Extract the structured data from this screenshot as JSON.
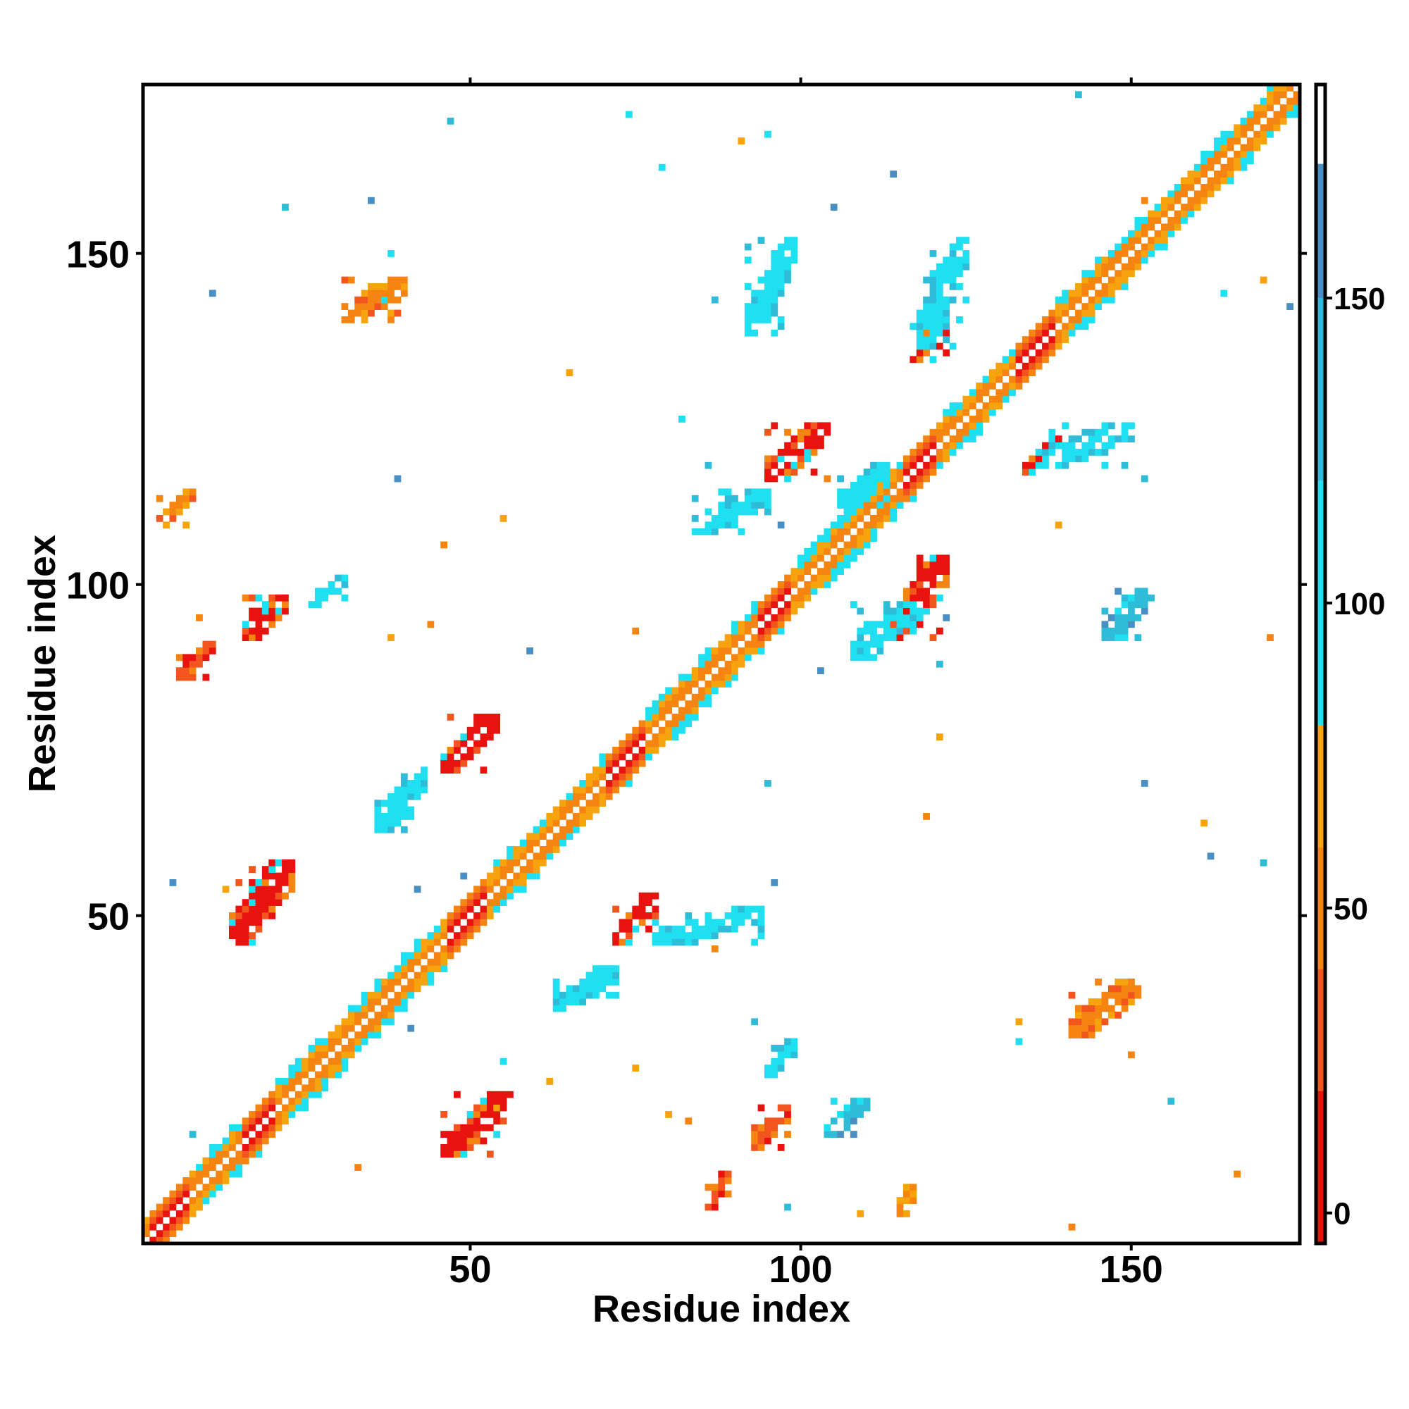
{
  "chart_data": {
    "type": "heatmap",
    "title": "",
    "xlabel": "Residue index",
    "ylabel": "Residue index",
    "xlim": [
      1,
      175
    ],
    "ylim": [
      1,
      175
    ],
    "x_ticks": [
      50,
      100,
      150
    ],
    "y_ticks": [
      50,
      100,
      150
    ],
    "x_tick_labels": [
      "50",
      "100",
      "150"
    ],
    "y_tick_labels": [
      "50",
      "100",
      "150"
    ],
    "grid": false,
    "colorbar": {
      "placement": "right",
      "range": [
        -5,
        185
      ],
      "ticks": [
        0,
        50,
        100,
        150
      ],
      "tick_labels": [
        "0",
        "50",
        "100",
        "150"
      ],
      "bins": [
        {
          "from": -5,
          "to": 20,
          "color": "#e8130f"
        },
        {
          "from": 20,
          "to": 40,
          "color": "#f2561e"
        },
        {
          "from": 40,
          "to": 60,
          "color": "#f58510"
        },
        {
          "from": 60,
          "to": 80,
          "color": "#f7a30d"
        },
        {
          "from": 80,
          "to": 120,
          "color": "#1fe0f0"
        },
        {
          "from": 120,
          "to": 150,
          "color": "#2fbcd8"
        },
        {
          "from": 150,
          "to": 172,
          "color": "#4a8fc4"
        },
        {
          "from": 172,
          "to": 185,
          "color": "#ffffff"
        }
      ]
    },
    "colors": {
      "red": "#e8130f",
      "red_orange": "#f2561e",
      "orange": "#f58510",
      "light_orange": "#f7a30d",
      "cyan": "#1fe0f0",
      "sky_blue": "#2fbcd8",
      "steel_blue": "#4a8fc4"
    },
    "contact_map": {
      "diagonal_band": {
        "from": 1,
        "to": 175,
        "width": 3,
        "colors": [
          "red",
          "orange",
          "light_orange",
          "cyan"
        ]
      },
      "helix_segments": [
        [
          2,
          7
        ],
        [
          16,
          20
        ],
        [
          47,
          52
        ],
        [
          71,
          76
        ],
        [
          94,
          98
        ],
        [
          116,
          120
        ],
        [
          133,
          138
        ]
      ],
      "patches": [
        {
          "x1": 14,
          "x2": 23,
          "y1": 46,
          "y2": 58,
          "color": "red",
          "sym": true
        },
        {
          "x1": 16,
          "x2": 22,
          "y1": 92,
          "y2": 98,
          "color": "red",
          "sym": true
        },
        {
          "x1": 46,
          "x2": 56,
          "y1": 14,
          "y2": 23,
          "color": "red",
          "sym": false
        },
        {
          "x1": 46,
          "x2": 54,
          "y1": 72,
          "y2": 80,
          "color": "red",
          "sym": false
        },
        {
          "x1": 72,
          "x2": 78,
          "y1": 46,
          "y2": 53,
          "color": "red",
          "sym": false
        },
        {
          "x1": 93,
          "x2": 98,
          "y1": 15,
          "y2": 21,
          "color": "red_orange",
          "sym": false
        },
        {
          "x1": 95,
          "x2": 104,
          "y1": 116,
          "y2": 124,
          "color": "red",
          "sym": false
        },
        {
          "x1": 114,
          "x2": 122,
          "y1": 92,
          "y2": 104,
          "color": "red",
          "sym": false
        },
        {
          "x1": 117,
          "x2": 122,
          "y1": 134,
          "y2": 140,
          "color": "red",
          "sym": false
        },
        {
          "x1": 134,
          "x2": 139,
          "y1": 117,
          "y2": 122,
          "color": "red",
          "sym": false
        },
        {
          "x1": 141,
          "x2": 151,
          "y1": 32,
          "y2": 40,
          "color": "orange",
          "sym": false
        },
        {
          "x1": 31,
          "x2": 40,
          "y1": 140,
          "y2": 146,
          "color": "orange",
          "sym": false
        },
        {
          "x1": 3,
          "x2": 8,
          "y1": 109,
          "y2": 114,
          "color": "orange",
          "sym": false
        },
        {
          "x1": 6,
          "x2": 11,
          "y1": 86,
          "y2": 91,
          "color": "red_orange",
          "sym": false
        },
        {
          "x1": 114,
          "x2": 117,
          "y1": 5,
          "y2": 9,
          "color": "orange",
          "sym": false
        },
        {
          "x1": 86,
          "x2": 89,
          "y1": 6,
          "y2": 11,
          "color": "red_orange",
          "sym": false
        },
        {
          "x1": 26,
          "x2": 31,
          "y1": 97,
          "y2": 101,
          "color": "cyan",
          "sym": false
        },
        {
          "x1": 95,
          "x2": 99,
          "y1": 26,
          "y2": 31,
          "color": "cyan",
          "sym": false
        },
        {
          "x1": 84,
          "x2": 95,
          "y1": 108,
          "y2": 114,
          "color": "cyan",
          "sym": false
        },
        {
          "x1": 108,
          "x2": 117,
          "y1": 89,
          "y2": 97,
          "color": "cyan",
          "sym": false
        },
        {
          "x1": 136,
          "x2": 150,
          "y1": 118,
          "y2": 124,
          "color": "cyan",
          "sym": false
        },
        {
          "x1": 118,
          "x2": 125,
          "y1": 136,
          "y2": 152,
          "color": "cyan",
          "sym": false
        },
        {
          "x1": 106,
          "x2": 113,
          "y1": 112,
          "y2": 118,
          "color": "cyan",
          "sym": false
        },
        {
          "x1": 92,
          "x2": 99,
          "y1": 138,
          "y2": 152,
          "color": "cyan",
          "sym": false
        },
        {
          "x1": 146,
          "x2": 153,
          "y1": 92,
          "y2": 99,
          "color": "sky_blue",
          "sym": false
        },
        {
          "x1": 63,
          "x2": 72,
          "y1": 36,
          "y2": 42,
          "color": "cyan",
          "sym": false
        },
        {
          "x1": 36,
          "x2": 43,
          "y1": 63,
          "y2": 72,
          "color": "cyan",
          "sym": false
        },
        {
          "x1": 104,
          "x2": 110,
          "y1": 17,
          "y2": 22,
          "color": "sky_blue",
          "sym": false
        },
        {
          "x1": 78,
          "x2": 95,
          "y1": 46,
          "y2": 51,
          "color": "cyan",
          "sym": false
        }
      ]
    }
  }
}
